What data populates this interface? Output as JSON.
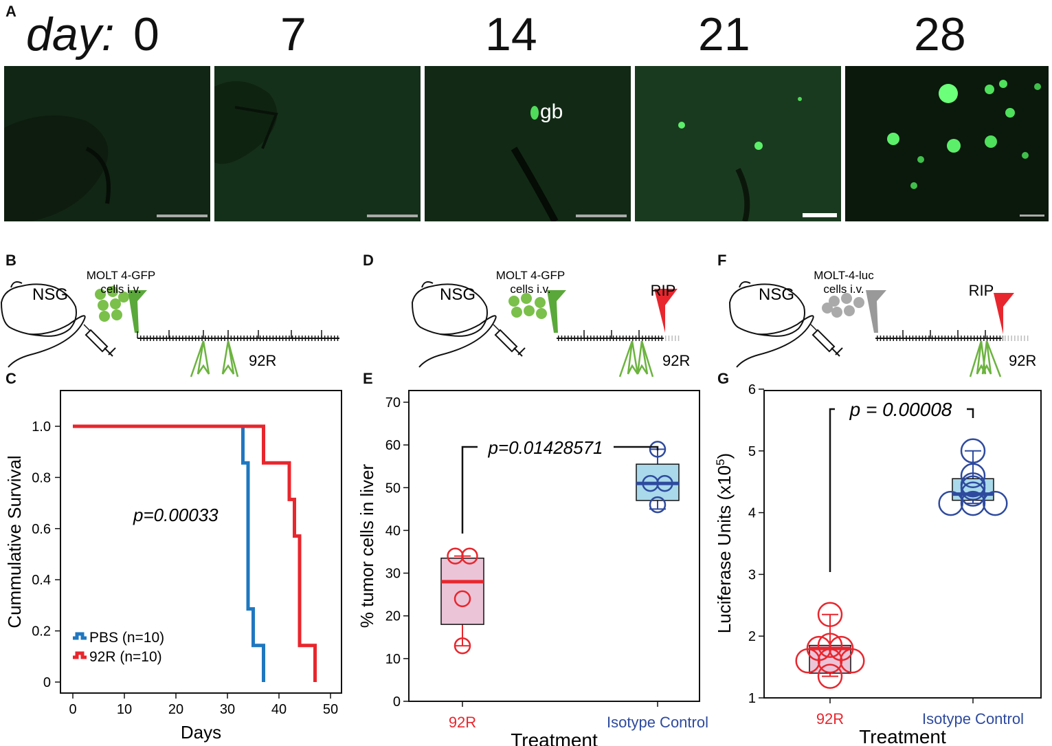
{
  "panels": {
    "a": "A",
    "b": "B",
    "c": "C",
    "d": "D",
    "e": "E",
    "f": "F",
    "g": "G"
  },
  "panel_a": {
    "day_prefix": "day:",
    "days": [
      "0",
      "7",
      "14",
      "21",
      "28"
    ],
    "gb_label": "gb"
  },
  "schematics": {
    "b": {
      "mouse": "NSG",
      "cells_line1": "MOLT 4-GFP",
      "cells_line2": "cells i.v.",
      "treatment": "92R"
    },
    "d": {
      "mouse": "NSG",
      "cells_line1": "MOLT 4-GFP",
      "cells_line2": "cells i.v.",
      "endpoint": "RIP",
      "treatment": "92R"
    },
    "f": {
      "mouse": "NSG",
      "cells_line1": "MOLT-4-luc",
      "cells_line2": "cells i.v.",
      "endpoint": "RIP",
      "treatment": "92R"
    }
  },
  "colors": {
    "red": "#e8262d",
    "blue": "#2e4a9e",
    "km_blue": "#1f77c0",
    "green": "#6cb33f",
    "gray": "#999999",
    "pink_fill": "#ebc4d8",
    "cyan_fill": "#a9d9ea"
  },
  "chart_data": [
    {
      "type": "line",
      "panel": "C",
      "xlabel": "Days",
      "ylabel": "Cummulative Survival",
      "xlim": [
        0,
        50
      ],
      "ylim": [
        0,
        1.0
      ],
      "xticks": [
        "0",
        "10",
        "20",
        "30",
        "40",
        "50"
      ],
      "yticks": [
        "0",
        "0.2",
        "0.4",
        "0.6",
        "0.8",
        "1.0"
      ],
      "annotation": "p=0.00033",
      "legend_position": "bottom-left",
      "series": [
        {
          "name": "PBS (n=10)",
          "color": "#1f77c0",
          "x": [
            0,
            33,
            33,
            34,
            34,
            35,
            35,
            37,
            37
          ],
          "y": [
            1.0,
            1.0,
            0.857,
            0.857,
            0.286,
            0.286,
            0.143,
            0.143,
            0
          ]
        },
        {
          "name": "92R (n=10)",
          "color": "#e8262d",
          "x": [
            0,
            37,
            37,
            42,
            42,
            43,
            43,
            44,
            44,
            47,
            47
          ],
          "y": [
            1.0,
            1.0,
            0.857,
            0.857,
            0.714,
            0.714,
            0.571,
            0.571,
            0.143,
            0.143,
            0
          ]
        }
      ]
    },
    {
      "type": "box",
      "panel": "E",
      "xlabel": "Treatment",
      "ylabel": "% tumor cells in liver",
      "ylim": [
        0,
        70
      ],
      "yticks": [
        "0",
        "10",
        "20",
        "30",
        "40",
        "50",
        "60",
        "70"
      ],
      "annotation": "p=0.01428571",
      "categories": [
        "92R",
        "Isotype Control"
      ],
      "groups": [
        {
          "name": "92R",
          "color": "#e8262d",
          "fill": "#ebc4d8",
          "q1": 18,
          "median": 28,
          "q3": 33.5,
          "whisker_low": 13,
          "whisker_high": 34,
          "points": [
            34,
            34,
            24,
            13
          ]
        },
        {
          "name": "Isotype Control",
          "color": "#2e4a9e",
          "fill": "#a9d9ea",
          "q1": 47,
          "median": 51,
          "q3": 55.5,
          "whisker_low": 45,
          "whisker_high": 59,
          "points": [
            59,
            51,
            51,
            46
          ]
        }
      ]
    },
    {
      "type": "box",
      "panel": "G",
      "xlabel": "Treatment",
      "ylabel": "Luciferase Units (x10",
      "ylabel_sup": "5",
      "ylabel_end": ")",
      "ylim": [
        1,
        6
      ],
      "yticks": [
        "1",
        "2",
        "3",
        "4",
        "5",
        "6"
      ],
      "annotation": "p = 0.00008",
      "categories": [
        "92R",
        "Isotype Control"
      ],
      "groups": [
        {
          "name": "92R",
          "color": "#e8262d",
          "fill": "#ebc4d8",
          "q1": 1.4,
          "median": 1.8,
          "q3": 1.85,
          "whisker_low": 1.35,
          "whisker_high": 2.35,
          "points": [
            2.35,
            1.85,
            1.8,
            1.8,
            1.6,
            1.6,
            1.6,
            1.35
          ]
        },
        {
          "name": "Isotype Control",
          "color": "#2e4a9e",
          "fill": "#a9d9ea",
          "q1": 4.2,
          "median": 4.3,
          "q3": 4.55,
          "whisker_low": 4.15,
          "whisker_high": 5.0,
          "points": [
            5.0,
            4.6,
            4.45,
            4.4,
            4.3,
            4.15,
            4.15,
            4.15
          ]
        }
      ]
    }
  ]
}
